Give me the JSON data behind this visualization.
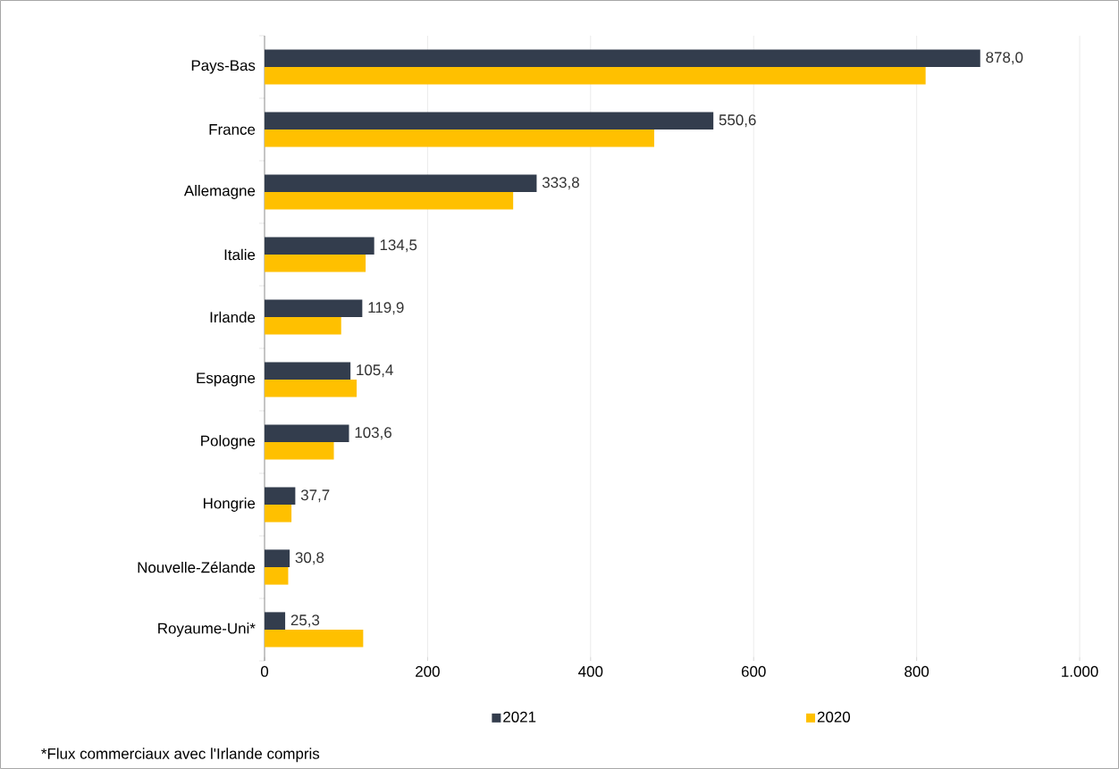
{
  "chart_data": {
    "type": "bar",
    "orientation": "horizontal",
    "categories": [
      "Pays-Bas",
      "France",
      "Allemagne",
      "Italie",
      "Irlande",
      "Espagne",
      "Pologne",
      "Hongrie",
      "Nouvelle-Zélande",
      "Royaume-Uni*"
    ],
    "series": [
      {
        "name": "2021",
        "color": "#333d4d",
        "values": [
          878.0,
          550.6,
          333.8,
          134.5,
          119.9,
          105.4,
          103.6,
          37.7,
          30.8,
          25.3
        ],
        "value_labels": [
          "878,0",
          "550,6",
          "333,8",
          "134,5",
          "119,9",
          "105,4",
          "103,6",
          "37,7",
          "30,8",
          "25,3"
        ]
      },
      {
        "name": "2020",
        "color": "#ffc000",
        "values": [
          811,
          478,
          305,
          124,
          94,
          113,
          85,
          33,
          29,
          121
        ]
      }
    ],
    "xlim": [
      0,
      1000
    ],
    "xticks": [
      0,
      200,
      400,
      600,
      800,
      {
        "value": 1000,
        "label": "1.000"
      }
    ],
    "grid": "x",
    "legend": "bottom",
    "annotations": [
      "*Flux commerciaux avec l'Irlande compris"
    ]
  }
}
